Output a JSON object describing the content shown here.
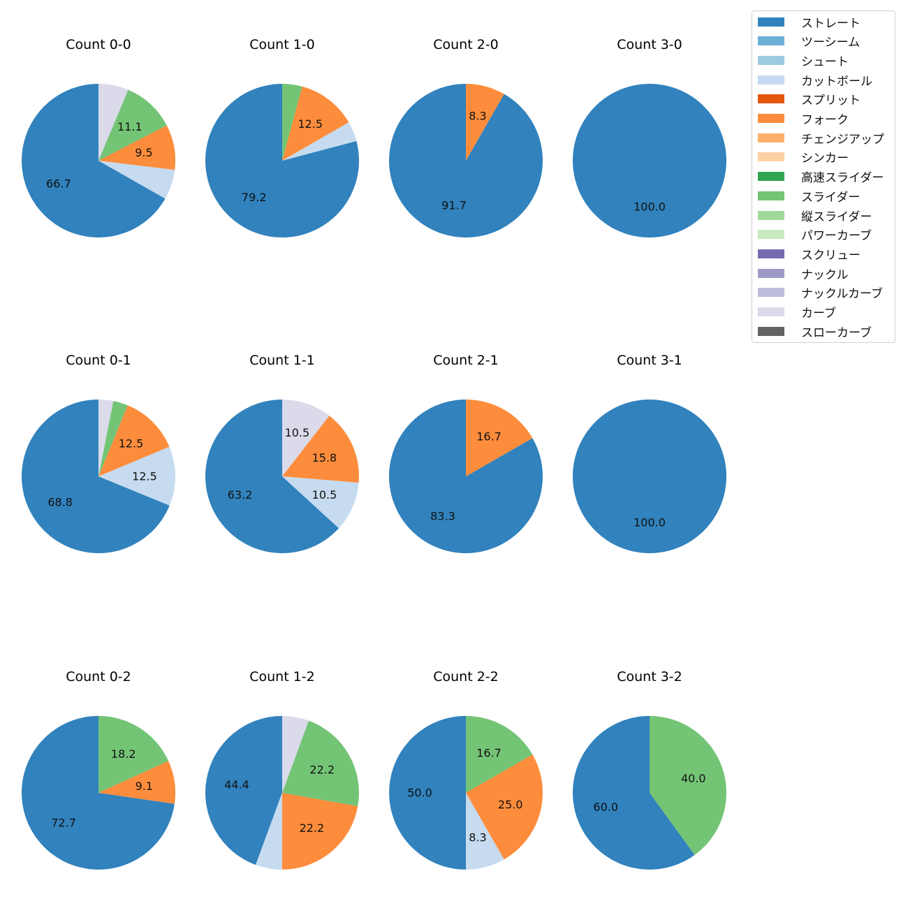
{
  "chart_data": {
    "type": "pie",
    "legend_position": "top-right",
    "legend": [
      {
        "name": "ストレート",
        "color": "#3182bd"
      },
      {
        "name": "ツーシーム",
        "color": "#6baed6"
      },
      {
        "name": "シュート",
        "color": "#9ecae1"
      },
      {
        "name": "カットボール",
        "color": "#c6dbef"
      },
      {
        "name": "スプリット",
        "color": "#e6550d"
      },
      {
        "name": "フォーク",
        "color": "#fd8d3c"
      },
      {
        "name": "チェンジアップ",
        "color": "#fdae6b"
      },
      {
        "name": "シンカー",
        "color": "#fdd0a2"
      },
      {
        "name": "高速スライダー",
        "color": "#31a354"
      },
      {
        "name": "スライダー",
        "color": "#74c476"
      },
      {
        "name": "縦スライダー",
        "color": "#a1d99b"
      },
      {
        "name": "パワーカーブ",
        "color": "#c7e9c0"
      },
      {
        "name": "スクリュー",
        "color": "#756bb1"
      },
      {
        "name": "ナックル",
        "color": "#9e9ac8"
      },
      {
        "name": "ナックルカーブ",
        "color": "#bcbddc"
      },
      {
        "name": "カーブ",
        "color": "#dadaeb"
      },
      {
        "name": "スローカーブ",
        "color": "#636363"
      }
    ],
    "pies": [
      {
        "title": "Count 0-0",
        "slices": [
          {
            "pitch": "ストレート",
            "value": 66.7,
            "label": "66.7"
          },
          {
            "pitch": "カットボール",
            "value": 6.3,
            "label": ""
          },
          {
            "pitch": "フォーク",
            "value": 9.5,
            "label": "9.5"
          },
          {
            "pitch": "スライダー",
            "value": 11.1,
            "label": "11.1"
          },
          {
            "pitch": "カーブ",
            "value": 6.3,
            "label": ""
          }
        ]
      },
      {
        "title": "Count 1-0",
        "slices": [
          {
            "pitch": "ストレート",
            "value": 79.2,
            "label": "79.2"
          },
          {
            "pitch": "カットボール",
            "value": 4.2,
            "label": ""
          },
          {
            "pitch": "フォーク",
            "value": 12.5,
            "label": "12.5"
          },
          {
            "pitch": "スライダー",
            "value": 4.2,
            "label": ""
          }
        ]
      },
      {
        "title": "Count 2-0",
        "slices": [
          {
            "pitch": "ストレート",
            "value": 91.7,
            "label": "91.7"
          },
          {
            "pitch": "フォーク",
            "value": 8.3,
            "label": "8.3"
          }
        ]
      },
      {
        "title": "Count 3-0",
        "slices": [
          {
            "pitch": "ストレート",
            "value": 100.0,
            "label": "100.0"
          }
        ]
      },
      {
        "title": "Count 0-1",
        "slices": [
          {
            "pitch": "ストレート",
            "value": 68.8,
            "label": "68.8"
          },
          {
            "pitch": "カットボール",
            "value": 12.5,
            "label": "12.5"
          },
          {
            "pitch": "フォーク",
            "value": 12.5,
            "label": "12.5"
          },
          {
            "pitch": "スライダー",
            "value": 3.1,
            "label": ""
          },
          {
            "pitch": "カーブ",
            "value": 3.1,
            "label": ""
          }
        ]
      },
      {
        "title": "Count 1-1",
        "slices": [
          {
            "pitch": "ストレート",
            "value": 63.2,
            "label": "63.2"
          },
          {
            "pitch": "カットボール",
            "value": 10.5,
            "label": "10.5"
          },
          {
            "pitch": "フォーク",
            "value": 15.8,
            "label": "15.8"
          },
          {
            "pitch": "カーブ",
            "value": 10.5,
            "label": "10.5"
          }
        ]
      },
      {
        "title": "Count 2-1",
        "slices": [
          {
            "pitch": "ストレート",
            "value": 83.3,
            "label": "83.3"
          },
          {
            "pitch": "フォーク",
            "value": 16.7,
            "label": "16.7"
          }
        ]
      },
      {
        "title": "Count 3-1",
        "slices": [
          {
            "pitch": "ストレート",
            "value": 100.0,
            "label": "100.0"
          }
        ]
      },
      {
        "title": "Count 0-2",
        "slices": [
          {
            "pitch": "ストレート",
            "value": 72.7,
            "label": "72.7"
          },
          {
            "pitch": "フォーク",
            "value": 9.1,
            "label": "9.1"
          },
          {
            "pitch": "スライダー",
            "value": 18.2,
            "label": "18.2"
          }
        ]
      },
      {
        "title": "Count 1-2",
        "slices": [
          {
            "pitch": "ストレート",
            "value": 44.4,
            "label": "44.4"
          },
          {
            "pitch": "カットボール",
            "value": 5.6,
            "label": ""
          },
          {
            "pitch": "フォーク",
            "value": 22.2,
            "label": "22.2"
          },
          {
            "pitch": "スライダー",
            "value": 22.2,
            "label": "22.2"
          },
          {
            "pitch": "カーブ",
            "value": 5.6,
            "label": ""
          }
        ]
      },
      {
        "title": "Count 2-2",
        "slices": [
          {
            "pitch": "ストレート",
            "value": 50.0,
            "label": "50.0"
          },
          {
            "pitch": "カットボール",
            "value": 8.3,
            "label": "8.3"
          },
          {
            "pitch": "フォーク",
            "value": 25.0,
            "label": "25.0"
          },
          {
            "pitch": "スライダー",
            "value": 16.7,
            "label": "16.7"
          }
        ]
      },
      {
        "title": "Count 3-2",
        "slices": [
          {
            "pitch": "ストレート",
            "value": 60.0,
            "label": "60.0"
          },
          {
            "pitch": "スライダー",
            "value": 40.0,
            "label": "40.0"
          }
        ]
      }
    ]
  }
}
